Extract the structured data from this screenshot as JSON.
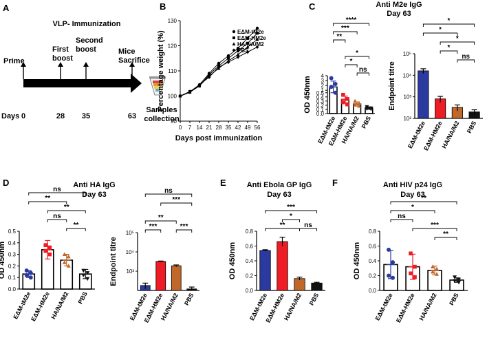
{
  "panels": {
    "A": {
      "letter": "A",
      "title": "VLP- Immunization"
    },
    "B": {
      "letter": "B"
    },
    "C": {
      "letter": "C",
      "title": "Anti M2e IgG",
      "subtitle": "Day 63"
    },
    "D": {
      "letter": "D",
      "title": "Anti HA IgG",
      "subtitle": "Day 63"
    },
    "E": {
      "letter": "E",
      "title": "Anti Ebola GP IgG",
      "subtitle": "Day 63"
    },
    "F": {
      "letter": "F",
      "title": "Anti HIV p24 IgG",
      "subtitle": "Day 63"
    }
  },
  "timeline": {
    "events": [
      "Prime",
      "First boost",
      "Second boost",
      "Mice Sacrifice"
    ],
    "days_label": "Days",
    "days": [
      "0",
      "28",
      "35",
      "63"
    ],
    "samples_label": "Samples collection"
  },
  "colors": {
    "tM2e": "#2b3a9e",
    "HM2e": "#ee1c24",
    "HA": "#c0672a",
    "PBS": "#111111"
  },
  "chart_data": [
    {
      "id": "B",
      "type": "line",
      "xlabel": "Days post immunization",
      "ylabel": "Percentage weight (%)",
      "x": [
        0,
        7,
        14,
        21,
        28,
        35,
        42,
        49,
        56
      ],
      "xticks": [
        "0",
        "7",
        "14",
        "21",
        "28",
        "35",
        "42",
        "49",
        "56"
      ],
      "ylim": [
        90,
        130
      ],
      "yticks": [
        "90",
        "100",
        "110",
        "120",
        "130"
      ],
      "series": [
        {
          "name": "EΔM-tM2e",
          "marker": "circle",
          "values": [
            100,
            101.5,
            104.5,
            109,
            113,
            116,
            119,
            123,
            127
          ]
        },
        {
          "name": "EΔM-HM2e",
          "marker": "square",
          "values": [
            100,
            101.8,
            104,
            108.5,
            112,
            115,
            118,
            121,
            125
          ]
        },
        {
          "name": "HA/NA/M2",
          "marker": "triangle",
          "values": [
            100,
            101.5,
            104,
            108,
            111,
            114,
            116.5,
            119.5,
            122.5
          ]
        },
        {
          "name": "PBS",
          "marker": "diamond",
          "values": [
            100,
            101.7,
            104.5,
            107.5,
            111.5,
            113.5,
            115.5,
            117.5,
            119.5
          ]
        }
      ]
    },
    {
      "id": "C1",
      "type": "bar",
      "ylabel": "OD 450nm",
      "ylim": [
        0,
        4
      ],
      "yticks": [
        "0.0",
        "0.1",
        "0.2",
        "0.3",
        "0.4",
        "0.5",
        "1",
        "2",
        "3",
        "4"
      ],
      "categories": [
        "EΔM-tM2e",
        "EΔM-HM2e",
        "HA/NA/M2",
        "PBS"
      ],
      "values": [
        1.7,
        0.34,
        0.23,
        0.13
      ],
      "errors": [
        1.2,
        0.08,
        0.05,
        0.03
      ],
      "points": [
        [
          3.5,
          2.3,
          1.7,
          0.5
        ],
        [
          0.45,
          0.35,
          0.27,
          0.22
        ],
        [
          0.3,
          0.24,
          0.21,
          0.18
        ],
        [
          0.16,
          0.13,
          0.12,
          0.11
        ]
      ],
      "significance": [
        {
          "pair": [
            0,
            3
          ],
          "label": "****"
        },
        {
          "pair": [
            0,
            2
          ],
          "label": "***"
        },
        {
          "pair": [
            0,
            1
          ],
          "label": "**"
        },
        {
          "pair": [
            1,
            3
          ],
          "label": "*"
        },
        {
          "pair": [
            1,
            2
          ],
          "label": "*"
        },
        {
          "pair": [
            2,
            3
          ],
          "label": "ns"
        }
      ]
    },
    {
      "id": "C2",
      "type": "bar",
      "ylabel": "Endpoint titre",
      "scale": "log",
      "ylim": [
        100,
        100000
      ],
      "yticks": [
        "10²",
        "10³",
        "10⁴",
        "10⁵"
      ],
      "categories": [
        "EΔM-tM2e",
        "EΔM-HM2e",
        "HA/NA/M2",
        "PBS"
      ],
      "values": [
        16000,
        800,
        320,
        200
      ],
      "errors": [
        4000,
        250,
        100,
        50
      ],
      "significance": [
        {
          "pair": [
            0,
            3
          ],
          "label": "*"
        },
        {
          "pair": [
            0,
            2
          ],
          "label": "*"
        },
        {
          "pair": [
            1,
            3
          ],
          "label": "*"
        },
        {
          "pair": [
            1,
            2
          ],
          "label": "*"
        },
        {
          "pair": [
            2,
            3
          ],
          "label": "ns"
        }
      ]
    },
    {
      "id": "D1",
      "type": "bar",
      "ylabel": "OD 450nm",
      "ylim": [
        0,
        0.5
      ],
      "yticks": [
        "0.0",
        "0.1",
        "0.2",
        "0.3",
        "0.4",
        "0.5"
      ],
      "categories": [
        "EΔM-tM2e",
        "EΔM-HM2e",
        "HA/NA/M2",
        "PBS"
      ],
      "values": [
        0.13,
        0.34,
        0.25,
        0.13
      ],
      "errors": [
        0.03,
        0.08,
        0.05,
        0.04
      ],
      "points": [
        [
          0.16,
          0.14,
          0.12,
          0.1
        ],
        [
          0.38,
          0.36,
          0.33,
          0.3
        ],
        [
          0.3,
          0.28,
          0.23,
          0.2
        ],
        [
          0.16,
          0.14,
          0.12,
          0.09
        ]
      ],
      "significance": [
        {
          "pair": [
            0,
            3
          ],
          "label": "ns"
        },
        {
          "pair": [
            0,
            2
          ],
          "label": "**"
        },
        {
          "pair": [
            1,
            3
          ],
          "label": "**"
        },
        {
          "pair": [
            1,
            2
          ],
          "label": "ns"
        },
        {
          "pair": [
            2,
            3
          ],
          "label": "**"
        }
      ]
    },
    {
      "id": "D2",
      "type": "bar",
      "ylabel": "Endpoint titre",
      "scale": "log",
      "ylim": [
        100,
        100000
      ],
      "yticks": [
        "10³",
        "10⁴",
        "10⁵"
      ],
      "categories": [
        "EΔM-tM2e",
        "EΔM-HM2e",
        "HA/NA/M2",
        "PBS"
      ],
      "values": [
        180,
        3200,
        1900,
        120
      ],
      "errors": [
        60,
        150,
        200,
        30
      ],
      "significance": [
        {
          "pair": [
            0,
            3
          ],
          "label": "ns"
        },
        {
          "pair": [
            1,
            3
          ],
          "label": "***"
        },
        {
          "pair": [
            0,
            2
          ],
          "label": "**"
        },
        {
          "pair": [
            0,
            1
          ],
          "label": "***"
        },
        {
          "pair": [
            2,
            3
          ],
          "label": "***"
        }
      ]
    },
    {
      "id": "E",
      "type": "bar",
      "ylabel": "OD 450nm",
      "ylim": [
        0,
        0.8
      ],
      "yticks": [
        "0.0",
        "0.2",
        "0.4",
        "0.6",
        "0.8"
      ],
      "categories": [
        "EΔM-tM2e",
        "EΔM-HM2e",
        "HA/NA/M2",
        "PBS"
      ],
      "values": [
        0.54,
        0.66,
        0.16,
        0.1
      ],
      "errors": [
        0.01,
        0.06,
        0.02,
        0.01
      ],
      "significance": [
        {
          "pair": [
            0,
            3
          ],
          "label": "***"
        },
        {
          "pair": [
            1,
            2
          ],
          "label": "*"
        },
        {
          "pair": [
            0,
            2
          ],
          "label": "**"
        },
        {
          "pair": [
            2,
            3
          ],
          "label": "ns"
        }
      ]
    },
    {
      "id": "F",
      "type": "bar",
      "ylabel": "OD 450nm",
      "ylim": [
        0,
        0.8
      ],
      "yticks": [
        "0.0",
        "0.2",
        "0.4",
        "0.6",
        "0.8"
      ],
      "categories": [
        "EΔM-tM2e",
        "EΔM-HM2e",
        "HA/NA/M2",
        "PBS"
      ],
      "values": [
        0.35,
        0.32,
        0.27,
        0.14
      ],
      "errors": [
        0.19,
        0.17,
        0.06,
        0.03
      ],
      "points": [
        [
          0.55,
          0.38,
          0.2,
          0.17
        ],
        [
          0.5,
          0.32,
          0.23,
          0.18
        ],
        [
          0.32,
          0.29,
          0.25,
          0.22
        ],
        [
          0.18,
          0.15,
          0.13,
          0.11
        ]
      ],
      "significance": [
        {
          "pair": [
            0,
            3
          ],
          "label": "**"
        },
        {
          "pair": [
            0,
            2
          ],
          "label": "*"
        },
        {
          "pair": [
            0,
            1
          ],
          "label": "ns"
        },
        {
          "pair": [
            1,
            3
          ],
          "label": "***"
        },
        {
          "pair": [
            2,
            3
          ],
          "label": "**"
        }
      ]
    }
  ]
}
